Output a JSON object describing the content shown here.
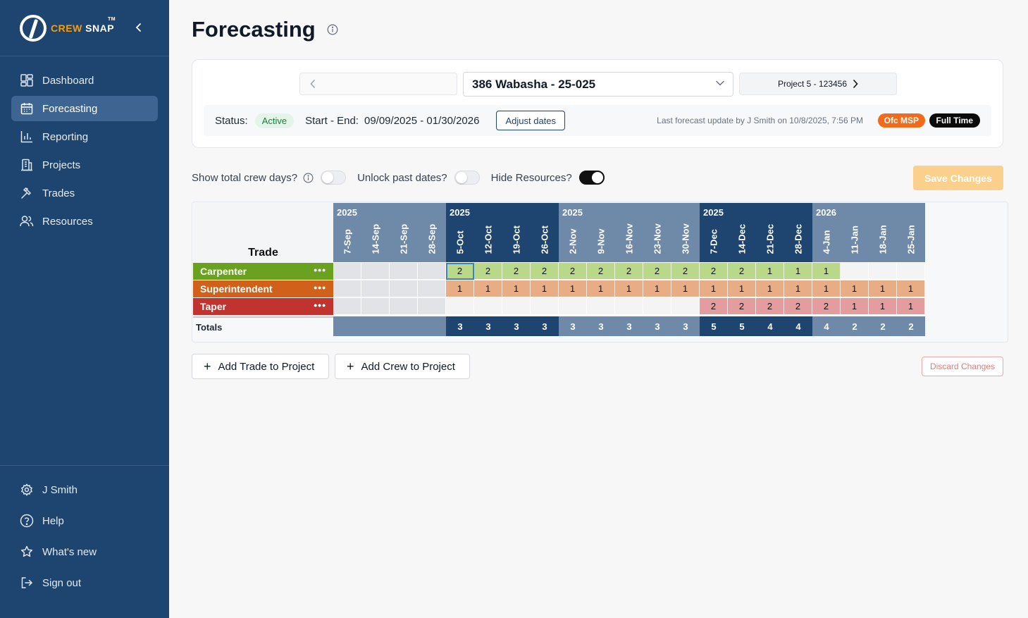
{
  "brand": {
    "name_part1": "CREW",
    "name_part2": " SNAP",
    "tm": "TM"
  },
  "sidebar": {
    "items": [
      {
        "label": "Dashboard",
        "icon": "dashboard-icon"
      },
      {
        "label": "Forecasting",
        "icon": "calendar-icon",
        "active": true
      },
      {
        "label": "Reporting",
        "icon": "bar-chart-icon"
      },
      {
        "label": "Projects",
        "icon": "building-icon"
      },
      {
        "label": "Trades",
        "icon": "hammer-icon"
      },
      {
        "label": "Resources",
        "icon": "users-icon"
      }
    ],
    "bottom": [
      {
        "label": "J Smith",
        "icon": "gear-icon"
      },
      {
        "label": "Help",
        "icon": "help-icon"
      },
      {
        "label": "What's new",
        "icon": "star-icon"
      },
      {
        "label": "Sign out",
        "icon": "sign-out-icon"
      }
    ]
  },
  "page": {
    "title": "Forecasting"
  },
  "project": {
    "prev_label": "",
    "current": "386 Wabasha - 25-025",
    "next_label": "Project 5 - 123456",
    "status_label": "Status:",
    "status": "Active",
    "dates_label": "Start - End:",
    "dates": "09/09/2025 - 01/30/2026",
    "adjust_label": "Adjust dates",
    "last_update": "Last forecast update by J Smith on 10/8/2025, 7:56 PM",
    "tags": [
      "Ofc MSP",
      "Full Time"
    ]
  },
  "toggles": {
    "total_days": {
      "label": "Show total crew days?",
      "on": false
    },
    "unlock_past": {
      "label": "Unlock past dates?",
      "on": false
    },
    "hide_resources": {
      "label": "Hide Resources?",
      "on": true
    }
  },
  "save_label": "Save Changes",
  "grid": {
    "trade_header": "Trade",
    "totals_label": "Totals",
    "months": [
      {
        "year": "2025",
        "weeks": [
          "7-Sep",
          "14-Sep",
          "21-Sep",
          "28-Sep"
        ],
        "color": "#6f89a9"
      },
      {
        "year": "2025",
        "weeks": [
          "5-Oct",
          "12-Oct",
          "19-Oct",
          "26-Oct"
        ],
        "color": "#1e4470"
      },
      {
        "year": "2025",
        "weeks": [
          "2-Nov",
          "9-Nov",
          "16-Nov",
          "23-Nov",
          "30-Nov"
        ],
        "color": "#6f89a9"
      },
      {
        "year": "2025",
        "weeks": [
          "7-Dec",
          "14-Dec",
          "21-Dec",
          "28-Dec"
        ],
        "color": "#1e4470"
      },
      {
        "year": "2026",
        "weeks": [
          "4-Jan",
          "11-Jan",
          "18-Jan",
          "25-Jan"
        ],
        "color": "#6f89a9"
      }
    ],
    "trades": [
      {
        "name": "Carpenter",
        "color": "#6aa11f",
        "cell_color": "#b9d88a",
        "values": [
          "",
          "",
          "",
          "",
          "2",
          "2",
          "2",
          "2",
          "2",
          "2",
          "2",
          "2",
          "2",
          "2",
          "2",
          "1",
          "1",
          "1",
          "",
          "",
          ""
        ]
      },
      {
        "name": "Superintendent",
        "color": "#d0601a",
        "cell_color": "#e9ad86",
        "values": [
          "",
          "",
          "",
          "",
          "1",
          "1",
          "1",
          "1",
          "1",
          "1",
          "1",
          "1",
          "1",
          "1",
          "1",
          "1",
          "1",
          "1",
          "1",
          "1",
          "1"
        ]
      },
      {
        "name": "Taper",
        "color": "#c0332f",
        "cell_color": "#e39d9e",
        "values": [
          "",
          "",
          "",
          "",
          "",
          "",
          "",
          "",
          "",
          "",
          "",
          "",
          "",
          "2",
          "2",
          "2",
          "2",
          "2",
          "1",
          "1",
          "1"
        ]
      }
    ],
    "totals": [
      "",
      "",
      "",
      "",
      "3",
      "3",
      "3",
      "3",
      "3",
      "3",
      "3",
      "3",
      "3",
      "5",
      "5",
      "4",
      "4",
      "4",
      "2",
      "2",
      "2"
    ]
  },
  "actions": {
    "add_trade": "Add Trade to Project",
    "add_crew": "Add Crew to Project",
    "discard": "Discard Changes"
  }
}
